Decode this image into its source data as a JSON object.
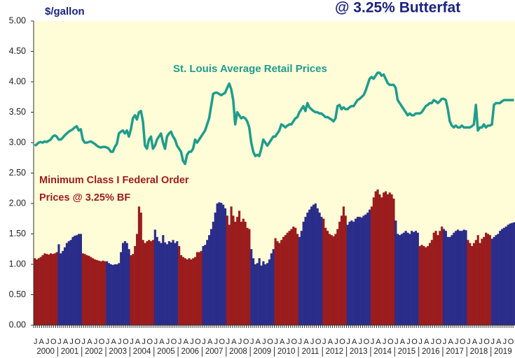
{
  "chart_data": {
    "type": "bar_line",
    "title": "@ 3.25% Butterfat",
    "y_axis_label": "$/gallon",
    "annotations": [
      "St. Louis Average Retail Prices",
      "Minimum Class I Federal Order",
      "Prices @ 3.25% BF"
    ],
    "categories": [
      "J",
      null,
      null,
      "A",
      null,
      null,
      "J",
      null,
      null,
      "O",
      null,
      null,
      "J",
      null,
      null,
      "A",
      null,
      null,
      "J",
      null,
      null,
      "O",
      null,
      null,
      "J",
      null,
      null,
      "A",
      null,
      null,
      "J",
      null,
      null,
      "O",
      null,
      null,
      "J",
      null,
      null,
      "A",
      null,
      null,
      "J",
      null,
      null,
      "O",
      null,
      null,
      "J",
      null,
      null,
      "A",
      null,
      null,
      "J",
      null,
      null,
      "O",
      null,
      null,
      "J",
      null,
      null,
      "A",
      null,
      null,
      "J",
      null,
      null,
      "O",
      null,
      null,
      "J",
      null,
      null,
      "A",
      null,
      null,
      "J",
      null,
      null,
      "O",
      null,
      null,
      "J",
      null,
      null,
      "A",
      null,
      null,
      "J",
      null,
      null,
      "O",
      null,
      null,
      "J",
      null,
      null,
      "A",
      null,
      null,
      "J",
      null,
      null,
      "O",
      null,
      null,
      "J",
      null,
      null,
      "A",
      null,
      null,
      "J",
      null,
      null,
      "O",
      null,
      null,
      "J",
      null,
      null,
      "A",
      null,
      null,
      "J",
      null,
      null,
      "O",
      null,
      null,
      "J",
      null,
      null,
      "A",
      null,
      null,
      "J",
      null,
      null,
      "O",
      null,
      null,
      "J",
      null,
      null,
      "A",
      null,
      null,
      "J",
      null,
      null,
      "O",
      null,
      null,
      "J",
      null,
      null,
      "A",
      null,
      null,
      "J",
      null,
      null,
      "O",
      null,
      null,
      "J",
      null,
      null,
      "A",
      null,
      null,
      "J",
      null,
      null,
      "O",
      null,
      null,
      "J",
      null,
      null,
      "A",
      null,
      null,
      "J",
      null,
      null,
      "O",
      null,
      null,
      "J",
      null,
      null,
      "A",
      null,
      null,
      "J",
      null,
      null,
      "O",
      null,
      null,
      "J",
      null,
      null,
      "A",
      null,
      null,
      "J",
      null,
      null,
      "O",
      null,
      null,
      "J",
      null,
      null,
      "A",
      null,
      null,
      "J",
      null,
      null,
      "O",
      null,
      null,
      "J",
      null,
      null,
      "A",
      null,
      null,
      "J",
      null,
      null,
      "O",
      null,
      null
    ],
    "year_labels": [
      "2000",
      "2001",
      "2002",
      "2003",
      "2004",
      "2005",
      "2006",
      "2007",
      "2008",
      "2009",
      "2010",
      "2011",
      "2012",
      "2013",
      "2014",
      "2015",
      "2016",
      "2017",
      "2018",
      "2019"
    ],
    "bar_colors": [
      "#9b1c1c",
      "#2b2d8a"
    ],
    "series": [
      {
        "type": "bar",
        "values": [
          1.1,
          1.08,
          1.1,
          1.12,
          1.15,
          1.18,
          1.17,
          1.16,
          1.18,
          1.17,
          1.18,
          1.2,
          1.33,
          1.18,
          1.22,
          1.28,
          1.35,
          1.38,
          1.4,
          1.45,
          1.47,
          1.48,
          1.5,
          1.5,
          1.18,
          1.17,
          1.15,
          1.14,
          1.12,
          1.1,
          1.08,
          1.07,
          1.06,
          1.05,
          1.06,
          1.05,
          1.05,
          1.02,
          1.0,
          0.99,
          1.0,
          1.0,
          1.02,
          1.2,
          1.35,
          1.38,
          1.35,
          1.25,
          1.15,
          1.17,
          1.3,
          1.5,
          1.95,
          1.85,
          1.4,
          1.35,
          1.38,
          1.4,
          1.38,
          1.4,
          1.57,
          1.45,
          1.38,
          1.35,
          1.48,
          1.36,
          1.33,
          1.38,
          1.36,
          1.4,
          1.35,
          1.38,
          1.3,
          1.15,
          1.12,
          1.1,
          1.08,
          1.1,
          1.08,
          1.1,
          1.12,
          1.2,
          1.2,
          1.22,
          1.3,
          1.32,
          1.4,
          1.48,
          1.58,
          1.7,
          1.85,
          2.0,
          2.02,
          2.01,
          1.98,
          1.92,
          1.8,
          1.65,
          1.95,
          1.8,
          1.7,
          1.78,
          1.88,
          1.7,
          1.75,
          1.7,
          1.6,
          1.58,
          1.25,
          1.1,
          1.0,
          1.02,
          1.1,
          0.98,
          1.05,
          1.0,
          1.02,
          1.08,
          1.18,
          1.25,
          1.43,
          1.38,
          1.35,
          1.4,
          1.45,
          1.48,
          1.52,
          1.55,
          1.58,
          1.62,
          1.6,
          1.5,
          1.45,
          1.55,
          1.7,
          1.78,
          1.85,
          1.9,
          1.95,
          1.98,
          2.0,
          1.92,
          1.85,
          1.78,
          1.75,
          1.6,
          1.55,
          1.5,
          1.48,
          1.46,
          1.5,
          1.58,
          1.7,
          1.8,
          1.95,
          1.8,
          1.65,
          1.7,
          1.72,
          1.7,
          1.75,
          1.78,
          1.78,
          1.77,
          1.8,
          1.82,
          1.85,
          1.9,
          1.95,
          2.1,
          2.2,
          2.23,
          2.15,
          2.1,
          2.18,
          2.2,
          2.15,
          2.18,
          2.15,
          2.08,
          1.72,
          1.5,
          1.48,
          1.5,
          1.52,
          1.55,
          1.52,
          1.5,
          1.55,
          1.53,
          1.55,
          1.52,
          1.3,
          1.32,
          1.3,
          1.28,
          1.3,
          1.35,
          1.4,
          1.52,
          1.55,
          1.48,
          1.55,
          1.62,
          1.58,
          1.55,
          1.45,
          1.45,
          1.48,
          1.52,
          1.55,
          1.57,
          1.55,
          1.55,
          1.57,
          1.56,
          1.4,
          1.35,
          1.3,
          1.35,
          1.4,
          1.48,
          1.35,
          1.42,
          1.45,
          1.52,
          1.5,
          1.48,
          1.42,
          1.45,
          1.48,
          1.5,
          1.55,
          1.58,
          1.6,
          1.62,
          1.65,
          1.67,
          1.68,
          1.69
        ]
      },
      {
        "type": "line",
        "color": "#1f9c8c",
        "values": [
          2.95,
          2.97,
          3.0,
          3.01,
          3.0,
          3.02,
          3.01,
          3.03,
          3.05,
          3.1,
          3.12,
          3.1,
          3.05,
          3.05,
          3.08,
          3.12,
          3.15,
          3.18,
          3.2,
          3.22,
          3.25,
          3.27,
          3.2,
          3.22,
          3.05,
          3.0,
          3.0,
          3.01,
          3.02,
          3.0,
          2.98,
          2.95,
          2.93,
          2.92,
          2.93,
          2.93,
          2.92,
          2.9,
          2.85,
          2.85,
          2.93,
          2.98,
          3.15,
          3.18,
          3.2,
          3.15,
          3.2,
          3.1,
          3.22,
          3.4,
          3.45,
          3.38,
          3.5,
          3.52,
          3.35,
          2.95,
          2.9,
          3.05,
          3.1,
          2.9,
          2.95,
          3.05,
          3.1,
          3.15,
          3.0,
          2.9,
          3.1,
          3.15,
          3.18,
          3.1,
          3.05,
          2.95,
          2.9,
          2.85,
          2.7,
          2.65,
          2.8,
          2.85,
          2.85,
          2.9,
          3.05,
          3.0,
          3.05,
          3.1,
          3.15,
          3.2,
          3.3,
          3.4,
          3.6,
          3.8,
          3.82,
          3.82,
          3.8,
          3.78,
          3.8,
          3.82,
          3.9,
          3.97,
          3.88,
          3.7,
          3.3,
          3.5,
          3.45,
          3.4,
          3.42,
          3.4,
          3.35,
          3.25,
          3.0,
          2.85,
          2.78,
          2.8,
          2.78,
          2.9,
          3.05,
          3.0,
          2.95,
          3.0,
          3.05,
          3.1,
          3.1,
          3.15,
          3.2,
          3.3,
          3.28,
          3.25,
          3.28,
          3.3,
          3.3,
          3.35,
          3.4,
          3.42,
          3.5,
          3.55,
          3.6,
          3.52,
          3.65,
          3.58,
          3.55,
          3.52,
          3.5,
          3.5,
          3.48,
          3.48,
          3.45,
          3.42,
          3.42,
          3.4,
          3.38,
          3.35,
          3.4,
          3.6,
          3.62,
          3.55,
          3.58,
          3.55,
          3.55,
          3.58,
          3.6,
          3.6,
          3.65,
          3.7,
          3.72,
          3.75,
          3.78,
          3.85,
          3.95,
          4.05,
          4.08,
          4.05,
          4.1,
          4.15,
          4.15,
          4.1,
          4.12,
          4.05,
          3.98,
          3.95,
          3.95,
          3.95,
          3.9,
          3.7,
          3.65,
          3.6,
          3.55,
          3.5,
          3.45,
          3.48,
          3.45,
          3.45,
          3.48,
          3.48,
          3.48,
          3.5,
          3.55,
          3.6,
          3.62,
          3.65,
          3.65,
          3.7,
          3.68,
          3.65,
          3.68,
          3.72,
          3.72,
          3.7,
          3.55,
          3.35,
          3.28,
          3.25,
          3.28,
          3.25,
          3.25,
          3.28,
          3.25,
          3.25,
          3.25,
          3.25,
          3.27,
          3.3,
          3.62,
          3.2,
          3.25,
          3.25,
          3.3,
          3.25,
          3.28,
          3.28,
          3.3,
          3.62,
          3.65,
          3.65,
          3.65,
          3.68,
          3.7,
          3.7,
          3.7,
          3.7,
          3.7,
          3.7
        ]
      }
    ],
    "ylim": [
      0,
      5
    ],
    "yticks": [
      {
        "value": 0,
        "label": "0.00"
      },
      {
        "value": 0.5,
        "label": "0.50"
      },
      {
        "value": 1,
        "label": "1.00"
      },
      {
        "value": 1.5,
        "label": "1.50"
      },
      {
        "value": 2,
        "label": "2.00"
      },
      {
        "value": 2.5,
        "label": "2.50"
      },
      {
        "value": 3,
        "label": "3.00"
      },
      {
        "value": 3.5,
        "label": "3.50"
      },
      {
        "value": 4,
        "label": "4.00"
      },
      {
        "value": 4.5,
        "label": "4.50"
      },
      {
        "value": 5,
        "label": "5.00"
      }
    ]
  }
}
